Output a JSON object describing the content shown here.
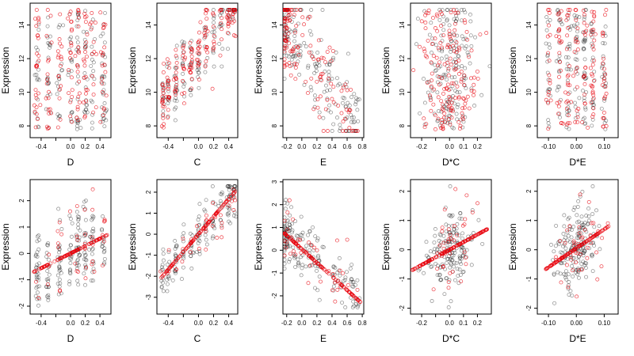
{
  "chart_data": [
    {
      "type": "scatter",
      "row": 1,
      "col": 1,
      "seed": 11,
      "xlabel": "D",
      "ylabel": "Expression",
      "xlim": [
        -0.55,
        0.55
      ],
      "ylim": [
        7.3,
        15.3
      ],
      "xticks": [
        -0.4,
        -0.2,
        0.0,
        0.2,
        0.4
      ],
      "xtick_labels": [
        "-0.4",
        "",
        "0.0",
        "0.2",
        "0.4"
      ],
      "yticks": [
        8,
        10,
        12,
        14
      ],
      "ytick_labels": [
        "8",
        "10",
        "12",
        "14"
      ],
      "point_color_black": "#000000",
      "point_color_red": "#e8000b",
      "pattern": "columns",
      "columns_x": [
        -0.45,
        -0.3,
        -0.15,
        0.0,
        0.1,
        0.2,
        0.3,
        0.45
      ],
      "range": [
        7.8,
        15.0
      ],
      "n": 320
    },
    {
      "type": "scatter",
      "row": 1,
      "col": 2,
      "seed": 12,
      "xlabel": "C",
      "ylabel": "Expression",
      "xlim": [
        -0.55,
        0.52
      ],
      "ylim": [
        7.3,
        15.3
      ],
      "xticks": [
        -0.4,
        -0.2,
        0.0,
        0.2,
        0.4
      ],
      "xtick_labels": [
        "-0.4",
        "",
        "0.0",
        "0.2",
        "0.4"
      ],
      "yticks": [
        8,
        10,
        12,
        14
      ],
      "ytick_labels": [
        "8",
        "10",
        "12",
        "14"
      ],
      "point_color_black": "#000000",
      "point_color_red": "#e8000b",
      "pattern": "trend_columns",
      "columns_x": [
        -0.47,
        -0.4,
        -0.3,
        -0.2,
        -0.1,
        0.0,
        0.1,
        0.2,
        0.3,
        0.4,
        0.47
      ],
      "slope": 5.5,
      "intercept": 12.3,
      "noise": 1.0,
      "n": 300
    },
    {
      "type": "scatter",
      "row": 1,
      "col": 3,
      "seed": 13,
      "xlabel": "E",
      "ylabel": "Expression",
      "xlim": [
        -0.25,
        0.82
      ],
      "ylim": [
        7.3,
        15.3
      ],
      "xticks": [
        -0.2,
        0.0,
        0.2,
        0.4,
        0.6,
        0.8
      ],
      "xtick_labels": [
        "-0.2",
        "0.0",
        "0.2",
        "0.4",
        "0.6",
        "0.8"
      ],
      "yticks": [
        8,
        10,
        12,
        14
      ],
      "ytick_labels": [
        "8",
        "10",
        "12",
        "14"
      ],
      "point_color_black": "#000000",
      "point_color_red": "#e8000b",
      "pattern": "decay",
      "slope": -6.5,
      "intercept": 12.8,
      "noise": 1.5,
      "n": 320
    },
    {
      "type": "scatter",
      "row": 1,
      "col": 4,
      "seed": 14,
      "xlabel": "D*C",
      "ylabel": "Expression",
      "xlim": [
        -0.28,
        0.3
      ],
      "ylim": [
        7.3,
        15.3
      ],
      "xticks": [
        -0.2,
        -0.1,
        0.0,
        0.1,
        0.2
      ],
      "xtick_labels": [
        "-0.2",
        "",
        "0.0",
        "0.1",
        "0.2"
      ],
      "yticks": [
        8,
        10,
        12,
        14
      ],
      "ytick_labels": [
        "8",
        "10",
        "12",
        "14"
      ],
      "point_color_black": "#000000",
      "point_color_red": "#e8000b",
      "pattern": "center_spike",
      "center": 0.0,
      "spread": 0.1,
      "range": [
        7.8,
        15.0
      ],
      "n": 320
    },
    {
      "type": "scatter",
      "row": 1,
      "col": 5,
      "seed": 15,
      "xlabel": "D*E",
      "ylabel": "Expression",
      "xlim": [
        -0.14,
        0.15
      ],
      "ylim": [
        7.3,
        15.3
      ],
      "xticks": [
        -0.1,
        0.0,
        0.1
      ],
      "xtick_labels": [
        "-0.10",
        "0.00",
        "0.10"
      ],
      "yticks": [
        8,
        10,
        12,
        14
      ],
      "ytick_labels": [
        "8",
        "10",
        "12",
        "14"
      ],
      "point_color_black": "#000000",
      "point_color_red": "#e8000b",
      "pattern": "columns",
      "columns_x": [
        -0.1,
        -0.06,
        -0.03,
        0.0,
        0.03,
        0.06,
        0.1
      ],
      "range": [
        7.8,
        15.0
      ],
      "n": 320
    },
    {
      "type": "scatter",
      "row": 2,
      "col": 1,
      "seed": 21,
      "xlabel": "D",
      "ylabel": "Expression",
      "xlim": [
        -0.55,
        0.55
      ],
      "ylim": [
        -2.3,
        2.8
      ],
      "xticks": [
        -0.4,
        -0.2,
        0.0,
        0.2,
        0.4
      ],
      "xtick_labels": [
        "-0.4",
        "",
        "0.0",
        "0.2",
        "0.4"
      ],
      "yticks": [
        -2,
        -1,
        0,
        1,
        2
      ],
      "ytick_labels": [
        "-2",
        "-1",
        "0",
        "1",
        "2"
      ],
      "point_color_black": "#000000",
      "point_color_red": "#e8000b",
      "pattern": "partial_columns",
      "columns_x": [
        -0.45,
        -0.3,
        -0.15,
        0.0,
        0.1,
        0.2,
        0.3,
        0.45
      ],
      "slope": 1.4,
      "intercept": 0.0,
      "noise": 0.8,
      "fit_range": [
        -0.5,
        0.5
      ],
      "n": 320
    },
    {
      "type": "scatter",
      "row": 2,
      "col": 2,
      "seed": 22,
      "xlabel": "C",
      "ylabel": "Expression",
      "xlim": [
        -0.55,
        0.52
      ],
      "ylim": [
        -3.8,
        2.6
      ],
      "xticks": [
        -0.4,
        -0.2,
        0.0,
        0.2,
        0.4
      ],
      "xtick_labels": [
        "-0.4",
        "",
        "0.0",
        "0.2",
        "0.4"
      ],
      "yticks": [
        -3,
        -2,
        -1,
        0,
        1,
        2
      ],
      "ytick_labels": [
        "-3",
        "-2",
        "-1",
        "0",
        "1",
        "2"
      ],
      "point_color_black": "#000000",
      "point_color_red": "#e8000b",
      "pattern": "partial_columns",
      "columns_x": [
        -0.47,
        -0.4,
        -0.3,
        -0.2,
        -0.1,
        0.0,
        0.1,
        0.2,
        0.3,
        0.4,
        0.47
      ],
      "slope": 4.2,
      "intercept": 0.0,
      "noise": 0.6,
      "fit_range": [
        -0.5,
        0.5
      ],
      "n": 300
    },
    {
      "type": "scatter",
      "row": 2,
      "col": 3,
      "seed": 23,
      "xlabel": "E",
      "ylabel": "Expression",
      "xlim": [
        -0.25,
        0.82
      ],
      "ylim": [
        -2.8,
        3.1
      ],
      "xticks": [
        -0.2,
        0.0,
        0.2,
        0.4,
        0.6,
        0.8
      ],
      "xtick_labels": [
        "-0.2",
        "0.0",
        "0.2",
        "0.4",
        "0.6",
        "0.8"
      ],
      "yticks": [
        -2,
        -1,
        0,
        1,
        2,
        3
      ],
      "ytick_labels": [
        "-2",
        "-1",
        "0",
        "1",
        "2",
        "3"
      ],
      "point_color_black": "#000000",
      "point_color_red": "#e8000b",
      "pattern": "partial_decay",
      "slope": -3.0,
      "intercept": 0.05,
      "noise": 0.65,
      "fit_range": [
        -0.23,
        0.78
      ],
      "n": 320
    },
    {
      "type": "scatter",
      "row": 2,
      "col": 4,
      "seed": 24,
      "xlabel": "D*C",
      "ylabel": "Expression",
      "xlim": [
        -0.28,
        0.3
      ],
      "ylim": [
        -2.2,
        2.4
      ],
      "xticks": [
        -0.2,
        -0.1,
        0.0,
        0.1,
        0.2
      ],
      "xtick_labels": [
        "-0.2",
        "",
        "0.0",
        "0.1",
        "0.2"
      ],
      "yticks": [
        -2,
        -1,
        0,
        1,
        2
      ],
      "ytick_labels": [
        "-2",
        "-1",
        "0",
        "1",
        "2"
      ],
      "point_color_black": "#000000",
      "point_color_red": "#e8000b",
      "pattern": "partial_center",
      "center": 0.0,
      "spread": 0.08,
      "slope": 2.6,
      "intercept": 0.0,
      "noise": 0.7,
      "fit_range": [
        -0.27,
        0.27
      ],
      "n": 320
    },
    {
      "type": "scatter",
      "row": 2,
      "col": 5,
      "seed": 25,
      "xlabel": "D*E",
      "ylabel": "Expression",
      "xlim": [
        -0.14,
        0.15
      ],
      "ylim": [
        -2.2,
        2.4
      ],
      "xticks": [
        -0.1,
        0.0,
        0.1
      ],
      "xtick_labels": [
        "-0.10",
        "0.00",
        "0.10"
      ],
      "yticks": [
        -2,
        -1,
        0,
        1,
        2
      ],
      "ytick_labels": [
        "-2",
        "-1",
        "0",
        "1",
        "2"
      ],
      "point_color_black": "#000000",
      "point_color_red": "#e8000b",
      "pattern": "partial_center",
      "center": 0.0,
      "spread": 0.04,
      "slope": 6.5,
      "intercept": 0.05,
      "noise": 0.7,
      "fit_range": [
        -0.11,
        0.12
      ],
      "n": 320
    }
  ]
}
